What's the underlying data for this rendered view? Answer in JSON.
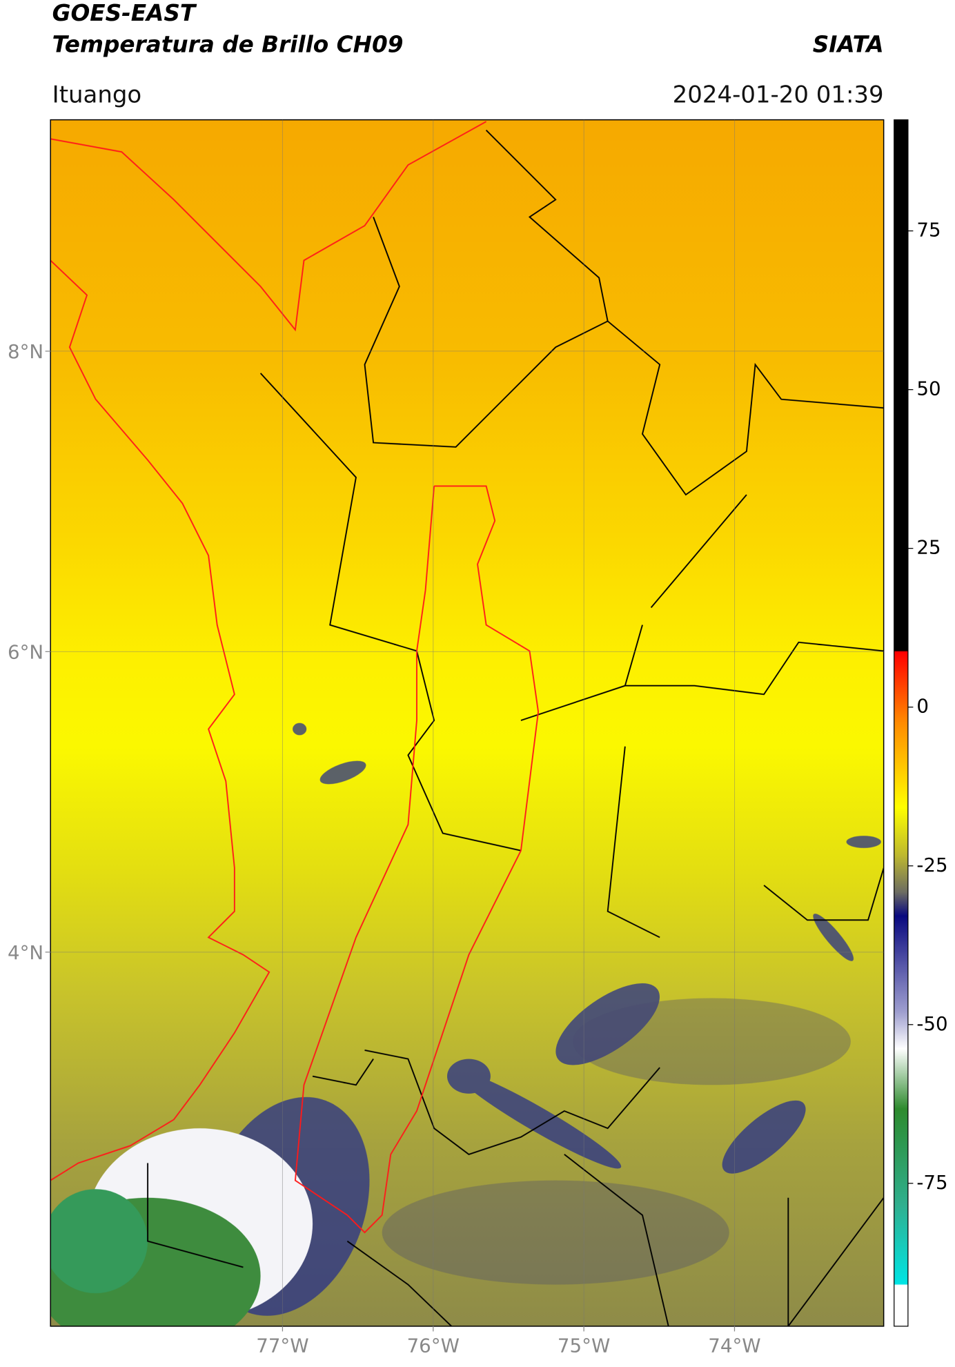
{
  "header": {
    "title": "GOES-EAST",
    "subtitle": "Temperatura de Brillo CH09",
    "agency": "SIATA",
    "location": "Ituango",
    "timestamp": "2024-01-20 01:39"
  },
  "map": {
    "lon_range": [
      -78.54,
      -73.01
    ],
    "lat_range": [
      1.51,
      9.54
    ],
    "lat_ticks": [
      {
        "value": 8,
        "label": "8°N"
      },
      {
        "value": 6,
        "label": "6°N"
      },
      {
        "value": 4,
        "label": "4°N"
      }
    ],
    "lon_ticks": [
      {
        "value": -77,
        "label": "77°W"
      },
      {
        "value": -76,
        "label": "76°W"
      },
      {
        "value": -75,
        "label": "75°W"
      },
      {
        "value": -74,
        "label": "74°W"
      }
    ],
    "grid": true
  },
  "colorbar": {
    "range": [
      -97.5,
      92.5
    ],
    "ticks": [
      75,
      50,
      25,
      0,
      -25,
      -50,
      -75
    ]
  }
}
